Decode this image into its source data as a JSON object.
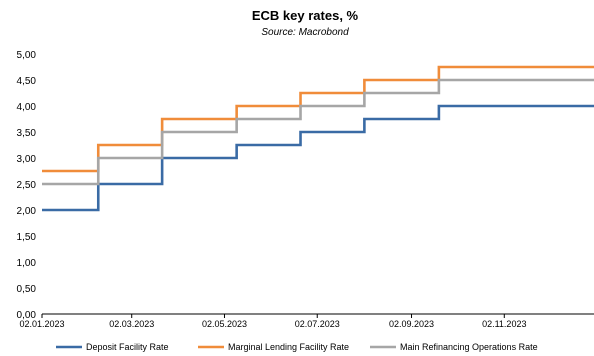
{
  "chart_data": {
    "type": "line",
    "step": true,
    "title": "ECB key rates, %",
    "subtitle": "Source: Macrobond",
    "x": [
      "02.01.2023",
      "02.02.2023",
      "08.02.2023",
      "15.03.2023",
      "22.03.2023",
      "03.05.2023",
      "10.05.2023",
      "14.06.2023",
      "21.06.2023",
      "26.07.2023",
      "02.08.2023",
      "14.09.2023",
      "20.09.2023",
      "31.12.2023"
    ],
    "x_ticks": [
      "02.01.2023",
      "02.03.2023",
      "02.05.2023",
      "02.07.2023",
      "02.09.2023",
      "02.11.2023"
    ],
    "ylim": [
      0,
      5
    ],
    "y_ticks": [
      "0,00",
      "0,50",
      "1,00",
      "1,50",
      "2,00",
      "2,50",
      "3,00",
      "3,50",
      "4,00",
      "4,50",
      "5,00"
    ],
    "grid": false,
    "legend_position": "bottom",
    "series": [
      {
        "name": "Deposit Facility Rate",
        "color": "#3a6ba5",
        "values": [
          2.0,
          2.0,
          2.5,
          2.5,
          3.0,
          3.0,
          3.25,
          3.25,
          3.5,
          3.5,
          3.75,
          3.75,
          4.0,
          4.0
        ]
      },
      {
        "name": "Marginal Lending Facility Rate",
        "color": "#f08c3a",
        "values": [
          2.75,
          2.75,
          3.25,
          3.25,
          3.75,
          3.75,
          4.0,
          4.0,
          4.25,
          4.25,
          4.5,
          4.5,
          4.75,
          4.75
        ]
      },
      {
        "name": "Main Refinancing Operations Rate",
        "color": "#a6a6a6",
        "values": [
          2.5,
          2.5,
          3.0,
          3.0,
          3.5,
          3.5,
          3.75,
          3.75,
          4.0,
          4.0,
          4.25,
          4.25,
          4.5,
          4.5
        ]
      }
    ]
  }
}
